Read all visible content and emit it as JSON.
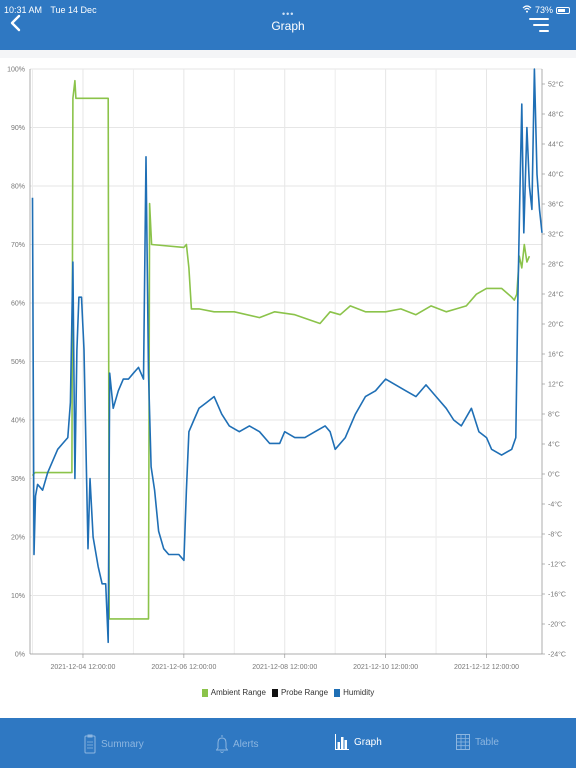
{
  "status_bar": {
    "time": "10:31 AM",
    "date": "Tue 14 Dec",
    "battery": "73%",
    "battery_level": 0.73
  },
  "header": {
    "title": "Graph",
    "back_icon": "chevron-left-icon",
    "menu_icon": "filter-menu-icon"
  },
  "chart_data": {
    "type": "line",
    "x_ticks": [
      "2021-12-04 12:00:00",
      "2021-12-06 12:00:00",
      "2021-12-08 12:00:00",
      "2021-12-10 12:00:00",
      "2021-12-12 12:00:00"
    ],
    "y_left": {
      "ticks": [
        "0%",
        "10%",
        "20%",
        "30%",
        "40%",
        "50%",
        "60%",
        "70%",
        "80%",
        "90%",
        "100%"
      ],
      "range": [
        0,
        100
      ]
    },
    "y_right": {
      "ticks": [
        "-24°C",
        "-20°C",
        "-16°C",
        "-12°C",
        "-8°C",
        "-4°C",
        "0°C",
        "4°C",
        "8°C",
        "12°C",
        "16°C",
        "20°C",
        "24°C",
        "28°C",
        "32°C",
        "36°C",
        "40°C",
        "44°C",
        "48°C",
        "52°C"
      ],
      "range": [
        -24,
        54
      ]
    },
    "grid": true,
    "legend_position": "bottom",
    "series": [
      {
        "name": "Ambient Range",
        "color": "#8bc34a",
        "axis": "left",
        "points": [
          [
            0,
            30.5
          ],
          [
            0.05,
            31
          ],
          [
            0.78,
            31
          ],
          [
            0.8,
            95
          ],
          [
            0.84,
            98
          ],
          [
            0.86,
            95
          ],
          [
            1.5,
            95
          ],
          [
            1.52,
            6
          ],
          [
            1.8,
            6
          ],
          [
            2.2,
            6
          ],
          [
            2.3,
            6
          ],
          [
            2.32,
            77
          ],
          [
            2.36,
            70
          ],
          [
            3.0,
            69.5
          ],
          [
            3.05,
            70
          ],
          [
            3.1,
            66
          ],
          [
            3.15,
            59
          ],
          [
            3.3,
            59
          ],
          [
            3.6,
            58.5
          ],
          [
            4.0,
            58.5
          ],
          [
            4.5,
            57.5
          ],
          [
            4.8,
            58.5
          ],
          [
            5.2,
            58
          ],
          [
            5.7,
            56.5
          ],
          [
            5.9,
            58.5
          ],
          [
            6.1,
            58
          ],
          [
            6.3,
            59.5
          ],
          [
            6.6,
            58.5
          ],
          [
            7.0,
            58.5
          ],
          [
            7.3,
            59
          ],
          [
            7.6,
            58
          ],
          [
            7.9,
            59.5
          ],
          [
            8.2,
            58.5
          ],
          [
            8.4,
            59
          ],
          [
            8.6,
            59.5
          ],
          [
            8.8,
            61.5
          ],
          [
            9.0,
            62.5
          ],
          [
            9.3,
            62.5
          ],
          [
            9.5,
            61
          ],
          [
            9.55,
            60.5
          ],
          [
            9.6,
            61.5
          ],
          [
            9.65,
            68
          ],
          [
            9.7,
            66
          ],
          [
            9.75,
            70
          ],
          [
            9.8,
            67
          ],
          [
            9.85,
            68
          ]
        ]
      },
      {
        "name": "Probe Range",
        "color": "#111111",
        "axis": "right",
        "points": []
      },
      {
        "name": "Humidity",
        "color": "#1f6fb5",
        "axis": "left",
        "points": [
          [
            0,
            78
          ],
          [
            0.03,
            17
          ],
          [
            0.06,
            27
          ],
          [
            0.1,
            29
          ],
          [
            0.2,
            28
          ],
          [
            0.3,
            31
          ],
          [
            0.4,
            33
          ],
          [
            0.5,
            35
          ],
          [
            0.6,
            36
          ],
          [
            0.7,
            37
          ],
          [
            0.75,
            43
          ],
          [
            0.8,
            67
          ],
          [
            0.84,
            30
          ],
          [
            0.88,
            52
          ],
          [
            0.92,
            61
          ],
          [
            0.97,
            61
          ],
          [
            1.02,
            52
          ],
          [
            1.06,
            35
          ],
          [
            1.1,
            18
          ],
          [
            1.14,
            30
          ],
          [
            1.2,
            20
          ],
          [
            1.3,
            15
          ],
          [
            1.38,
            12
          ],
          [
            1.45,
            12
          ],
          [
            1.5,
            2
          ],
          [
            1.53,
            48
          ],
          [
            1.6,
            42
          ],
          [
            1.7,
            45
          ],
          [
            1.8,
            47
          ],
          [
            1.9,
            47
          ],
          [
            2.0,
            48
          ],
          [
            2.1,
            49
          ],
          [
            2.2,
            47
          ],
          [
            2.25,
            85
          ],
          [
            2.3,
            48
          ],
          [
            2.35,
            32
          ],
          [
            2.42,
            28
          ],
          [
            2.5,
            21
          ],
          [
            2.6,
            18
          ],
          [
            2.7,
            17
          ],
          [
            2.9,
            17
          ],
          [
            3.0,
            16
          ],
          [
            3.05,
            28
          ],
          [
            3.1,
            38
          ],
          [
            3.2,
            40
          ],
          [
            3.3,
            42
          ],
          [
            3.45,
            43
          ],
          [
            3.6,
            44
          ],
          [
            3.75,
            41
          ],
          [
            3.9,
            39
          ],
          [
            4.1,
            38
          ],
          [
            4.3,
            39
          ],
          [
            4.5,
            38
          ],
          [
            4.7,
            36
          ],
          [
            4.9,
            36
          ],
          [
            5.0,
            38
          ],
          [
            5.2,
            37
          ],
          [
            5.4,
            37
          ],
          [
            5.6,
            38
          ],
          [
            5.8,
            39
          ],
          [
            5.9,
            38
          ],
          [
            6.0,
            35
          ],
          [
            6.2,
            37
          ],
          [
            6.4,
            41
          ],
          [
            6.6,
            44
          ],
          [
            6.8,
            45
          ],
          [
            7.0,
            47
          ],
          [
            7.2,
            46
          ],
          [
            7.4,
            45
          ],
          [
            7.6,
            44
          ],
          [
            7.8,
            46
          ],
          [
            8.0,
            44
          ],
          [
            8.2,
            42
          ],
          [
            8.35,
            40
          ],
          [
            8.5,
            39
          ],
          [
            8.7,
            42
          ],
          [
            8.85,
            38
          ],
          [
            9.0,
            37
          ],
          [
            9.1,
            35
          ],
          [
            9.3,
            34
          ],
          [
            9.5,
            35
          ],
          [
            9.58,
            37
          ],
          [
            9.62,
            60
          ],
          [
            9.66,
            78
          ],
          [
            9.7,
            94
          ],
          [
            9.74,
            72
          ],
          [
            9.8,
            90
          ],
          [
            9.85,
            80
          ],
          [
            9.9,
            76
          ],
          [
            9.95,
            100
          ],
          [
            10.0,
            82
          ],
          [
            10.05,
            76
          ],
          [
            10.1,
            72
          ]
        ]
      }
    ],
    "x_value_range": [
      -0.05,
      10.1
    ]
  },
  "legend": [
    {
      "label": "Ambient Range",
      "color": "#8bc34a"
    },
    {
      "label": "Probe Range",
      "color": "#111111"
    },
    {
      "label": "Humidity",
      "color": "#1f6fb5"
    }
  ],
  "tabs": [
    {
      "label": "Summary",
      "icon": "clipboard-icon",
      "active": false
    },
    {
      "label": "Alerts",
      "icon": "bell-icon",
      "active": false
    },
    {
      "label": "Graph",
      "icon": "bar-chart-icon",
      "active": true
    },
    {
      "label": "Table",
      "icon": "table-grid-icon",
      "active": false
    }
  ]
}
